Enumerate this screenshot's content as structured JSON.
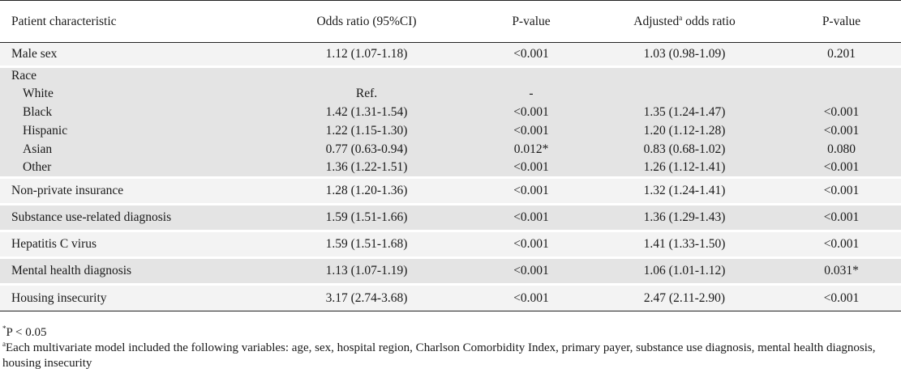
{
  "headers": {
    "characteristic": "Patient characteristic",
    "odds_ratio": "Odds ratio (95%CI)",
    "p_value": "P-value",
    "adjusted_pre": "Adjusted",
    "adjusted_sup": "a",
    "adjusted_post": " odds ratio",
    "p_value2": "P-value"
  },
  "rows": {
    "male": {
      "label": "Male sex",
      "or": "1.12 (1.07-1.18)",
      "p": "<0.001",
      "aor": "1.03 (0.98-1.09)",
      "ap": "0.201"
    },
    "race": {
      "label": "Race"
    },
    "white": {
      "label": "White",
      "or": "Ref.",
      "p": "-",
      "aor": "",
      "ap": ""
    },
    "black": {
      "label": "Black",
      "or": "1.42 (1.31-1.54)",
      "p": "<0.001",
      "aor": "1.35 (1.24-1.47)",
      "ap": "<0.001"
    },
    "hispanic": {
      "label": "Hispanic",
      "or": "1.22 (1.15-1.30)",
      "p": "<0.001",
      "aor": "1.20 (1.12-1.28)",
      "ap": "<0.001"
    },
    "asian": {
      "label": "Asian",
      "or": "0.77 (0.63-0.94)",
      "p": "0.012*",
      "aor": "0.83 (0.68-1.02)",
      "ap": "0.080"
    },
    "other": {
      "label": "Other",
      "or": "1.36 (1.22-1.51)",
      "p": "<0.001",
      "aor": "1.26 (1.12-1.41)",
      "ap": "<0.001"
    },
    "insurance": {
      "label": "Non-private insurance",
      "or": "1.28 (1.20-1.36)",
      "p": "<0.001",
      "aor": "1.32 (1.24-1.41)",
      "ap": "<0.001"
    },
    "substance": {
      "label": "Substance use-related diagnosis",
      "or": "1.59 (1.51-1.66)",
      "p": "<0.001",
      "aor": "1.36 (1.29-1.43)",
      "ap": "<0.001"
    },
    "hcv": {
      "label": "Hepatitis C virus",
      "or": "1.59 (1.51-1.68)",
      "p": "<0.001",
      "aor": "1.41 (1.33-1.50)",
      "ap": "<0.001"
    },
    "mental": {
      "label": "Mental health diagnosis",
      "or": "1.13 (1.07-1.19)",
      "p": "<0.001",
      "aor": "1.06 (1.01-1.12)",
      "ap": "0.031*"
    },
    "housing": {
      "label": "Housing insecurity",
      "or": "3.17 (2.74-3.68)",
      "p": "<0.001",
      "aor": "2.47 (2.11-2.90)",
      "ap": "<0.001"
    }
  },
  "footnotes": {
    "star_sup": "*",
    "star_text": "P < 0.05",
    "a_sup": "a",
    "a_text": "Each multivariate model included the following variables: age, sex, hospital region, Charlson Comorbidity Index, primary payer, substance use diagnosis, mental health diagnosis, housing insecurity"
  }
}
